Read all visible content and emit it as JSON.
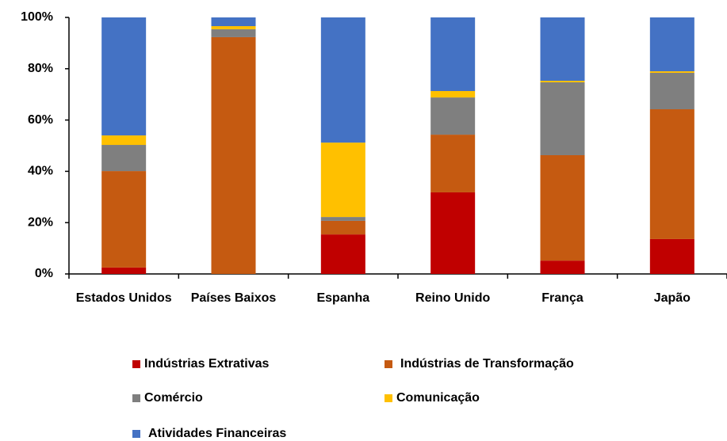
{
  "chart_data": {
    "type": "stacked_bar",
    "categories": [
      "Estados Unidos",
      "Países Baixos",
      "Espanha",
      "Reino Unido",
      "França",
      "Japão"
    ],
    "series": [
      {
        "name": "Indústrias Extrativas",
        "color": "#c00000",
        "values": [
          2.5,
          0,
          15.4,
          31.8,
          5.2,
          13.6
        ]
      },
      {
        "name": "Indústrias de Transformação",
        "color": "#c55a11",
        "values": [
          37.6,
          92.3,
          5.3,
          22.5,
          41.1,
          50.6
        ]
      },
      {
        "name": "Comércio",
        "color": "#7f7f7f",
        "values": [
          10.2,
          3.1,
          1.5,
          14.5,
          28.4,
          14.2
        ]
      },
      {
        "name": "Comunicação",
        "color": "#ffc000",
        "values": [
          3.7,
          1.2,
          29.0,
          2.5,
          0.6,
          0.6
        ]
      },
      {
        "name": "Atividades Financeiras",
        "color": "#4472c4",
        "values": [
          46.0,
          3.4,
          48.8,
          28.7,
          24.7,
          21.0
        ]
      }
    ],
    "ylim": [
      0,
      100
    ],
    "yticks": [
      {
        "value": 0,
        "label": "0%"
      },
      {
        "value": 20,
        "label": "20%"
      },
      {
        "value": 40,
        "label": "40%"
      },
      {
        "value": 60,
        "label": "60%"
      },
      {
        "value": 80,
        "label": "80%"
      },
      {
        "value": 100,
        "label": "100%"
      }
    ]
  }
}
